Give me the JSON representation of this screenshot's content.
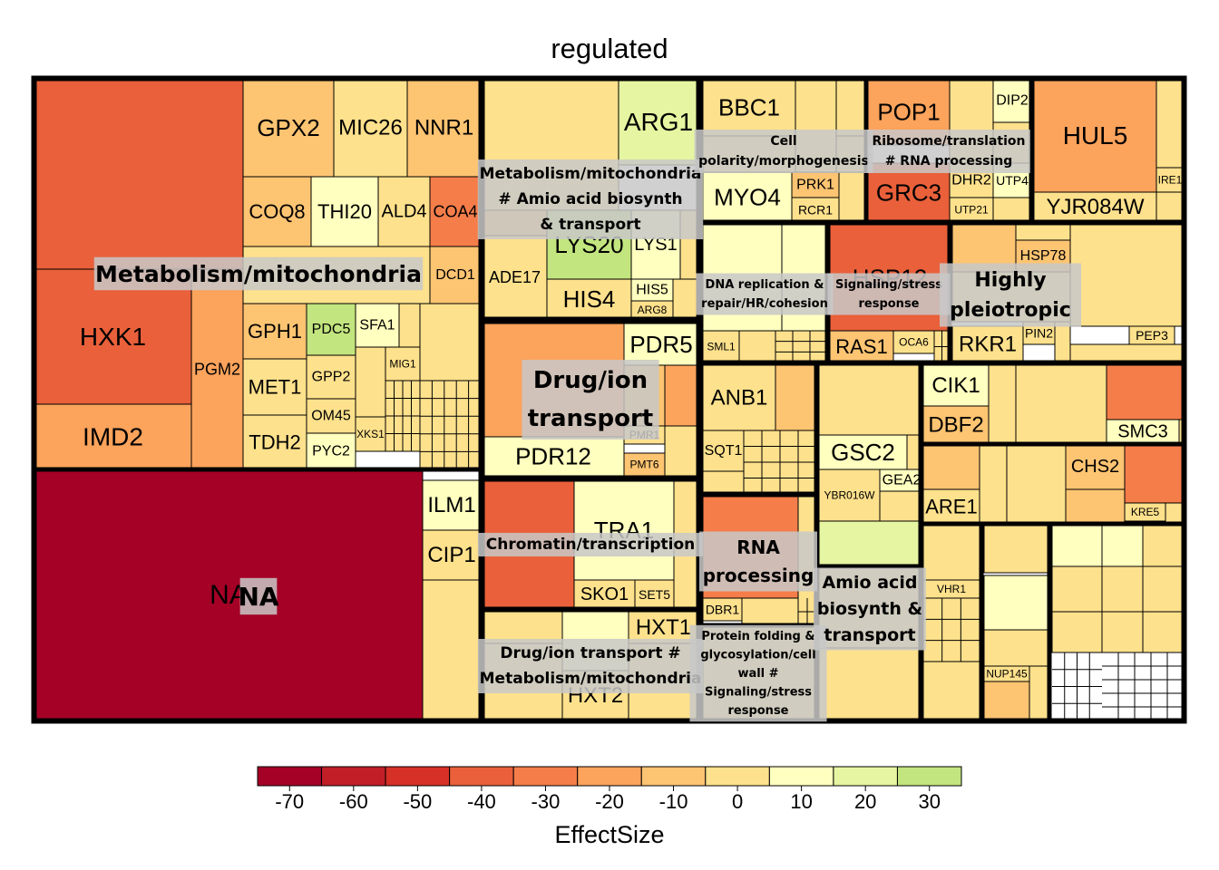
{
  "chart_data": {
    "type": "treemap",
    "title": "regulated",
    "legend": {
      "title": "EffectSize",
      "placement": "bottom",
      "ticks": [
        -70,
        -60,
        -50,
        -40,
        -30,
        -20,
        -10,
        0,
        10,
        20,
        30
      ],
      "range": [
        -75,
        35
      ],
      "bin_colors": [
        "#a50026",
        "#c11e28",
        "#d73027",
        "#e9603a",
        "#f57d4a",
        "#fca35c",
        "#fdc472",
        "#fee18c",
        "#ffffbf",
        "#e6f5a1",
        "#c3e57f",
        "#a0d669"
      ]
    },
    "groups": [
      {
        "name": "Metabolism/mitochondria",
        "label": "Metabolism/mitochondria"
      },
      {
        "name": "NA",
        "label": "NA"
      },
      {
        "name": "Metabolism/mitochondria # Amio acid biosynth & transport",
        "label": "Metabolism/mitochondria # Amio acid biosynth & transport"
      },
      {
        "name": "Drug/ion transport",
        "label": "Drug/ion transport"
      },
      {
        "name": "Chromatin/transcription",
        "label": "Chromatin/transcription"
      },
      {
        "name": "Drug/ion transport # Metabolism/mitochondria",
        "label": "Drug/ion transport # Metabolism/mitochondria"
      },
      {
        "name": "Cell polarity/morphogenesis",
        "label": "Cell polarity/morphogenesis"
      },
      {
        "name": "Ribosome/translation # RNA processing",
        "label": "Ribosome/translation # RNA processing"
      },
      {
        "name": "DNA replication & repair/HR/cohesion",
        "label": "DNA replication & repair/HR/cohesion"
      },
      {
        "name": "Signaling/stress response",
        "label": "Signaling/stress response"
      },
      {
        "name": "Highly pleiotropic",
        "label": "Highly pleiotropic"
      },
      {
        "name": "RNA processing",
        "label": "RNA processing"
      },
      {
        "name": "Protein folding & glycosylation/cell wall # Signaling/stress response",
        "label": "Protein folding & glycosylation/cell wall # Signaling/stress response"
      },
      {
        "name": "Amio acid biosynth & transport",
        "label": "Amio acid biosynth & transport"
      }
    ],
    "genes": [
      {
        "name": "HXK1",
        "group": "Metabolism/mitochondria",
        "value": -38
      },
      {
        "name": "IMD2",
        "group": "Metabolism/mitochondria",
        "value": -18
      },
      {
        "name": "PGM2",
        "group": "Metabolism/mitochondria",
        "value": -25
      },
      {
        "name": "GPX2",
        "group": "Metabolism/mitochondria",
        "value": -12
      },
      {
        "name": "MIC26",
        "group": "Metabolism/mitochondria",
        "value": 3
      },
      {
        "name": "NNR1",
        "group": "Metabolism/mitochondria",
        "value": -8
      },
      {
        "name": "COQ8",
        "group": "Metabolism/mitochondria",
        "value": -15
      },
      {
        "name": "THI20",
        "group": "Metabolism/mitochondria",
        "value": 12
      },
      {
        "name": "ALD4",
        "group": "Metabolism/mitochondria",
        "value": -5
      },
      {
        "name": "COA4",
        "group": "Metabolism/mitochondria",
        "value": -33
      },
      {
        "name": "DCD1",
        "group": "Metabolism/mitochondria",
        "value": -15
      },
      {
        "name": "GPH1",
        "group": "Metabolism/mitochondria",
        "value": -8
      },
      {
        "name": "PDC5",
        "group": "Metabolism/mitochondria",
        "value": 28
      },
      {
        "name": "SFA1",
        "group": "Metabolism/mitochondria",
        "value": 5
      },
      {
        "name": "MIG1",
        "group": "Metabolism/mitochondria",
        "value": 2
      },
      {
        "name": "MET1",
        "group": "Metabolism/mitochondria",
        "value": -3
      },
      {
        "name": "GPP2",
        "group": "Metabolism/mitochondria",
        "value": 1
      },
      {
        "name": "OM45",
        "group": "Metabolism/mitochondria",
        "value": 3
      },
      {
        "name": "XKS1",
        "group": "Metabolism/mitochondria",
        "value": 1
      },
      {
        "name": "TDH2",
        "group": "Metabolism/mitochondria",
        "value": -2
      },
      {
        "name": "PYC2",
        "group": "Metabolism/mitochondria",
        "value": 12
      },
      {
        "name": "NA",
        "group": "NA",
        "value": -72
      },
      {
        "name": "ILM1",
        "group": "NA",
        "value": 5
      },
      {
        "name": "CIP1",
        "group": "NA",
        "value": 0
      },
      {
        "name": "ARG1",
        "group": "Metabolism/mitochondria # Amio acid biosynth & transport",
        "value": 15
      },
      {
        "name": "LYS20",
        "group": "Metabolism/mitochondria # Amio acid biosynth & transport",
        "value": 25
      },
      {
        "name": "LYS1",
        "group": "Metabolism/mitochondria # Amio acid biosynth & transport",
        "value": 6
      },
      {
        "name": "ADE17",
        "group": "Metabolism/mitochondria # Amio acid biosynth & transport",
        "value": -5
      },
      {
        "name": "HIS4",
        "group": "Metabolism/mitochondria # Amio acid biosynth & transport",
        "value": 0
      },
      {
        "name": "HIS5",
        "group": "Metabolism/mitochondria # Amio acid biosynth & transport",
        "value": 5
      },
      {
        "name": "ARG8",
        "group": "Metabolism/mitochondria # Amio acid biosynth & transport",
        "value": 3
      },
      {
        "name": "PDR5",
        "group": "Drug/ion transport",
        "value": 5
      },
      {
        "name": "PDR12",
        "group": "Drug/ion transport",
        "value": 5
      },
      {
        "name": "PMR1",
        "group": "Drug/ion transport",
        "value": 0
      },
      {
        "name": "PMT6",
        "group": "Drug/ion transport",
        "value": -10
      },
      {
        "name": "TRA1",
        "group": "Chromatin/transcription",
        "value": 12
      },
      {
        "name": "SKO1",
        "group": "Chromatin/transcription",
        "value": 0
      },
      {
        "name": "SET5",
        "group": "Chromatin/transcription",
        "value": 0
      },
      {
        "name": "HXT1",
        "group": "Drug/ion transport # Metabolism/mitochondria",
        "value": 0
      },
      {
        "name": "HXT2",
        "group": "Drug/ion transport # Metabolism/mitochondria",
        "value": -3
      },
      {
        "name": "BBC1",
        "group": "Cell polarity/morphogenesis",
        "value": -3
      },
      {
        "name": "MYO4",
        "group": "Cell polarity/morphogenesis",
        "value": 5
      },
      {
        "name": "PRK1",
        "group": "Cell polarity/morphogenesis",
        "value": -15
      },
      {
        "name": "RCR1",
        "group": "Cell polarity/morphogenesis",
        "value": 0
      },
      {
        "name": "POP1",
        "group": "Ribosome/translation # RNA processing",
        "value": -25
      },
      {
        "name": "GRC3",
        "group": "Ribosome/translation # RNA processing",
        "value": -40
      },
      {
        "name": "DIP2",
        "group": "Ribosome/translation # RNA processing",
        "value": 12
      },
      {
        "name": "DHR2",
        "group": "Ribosome/translation # RNA processing",
        "value": 0
      },
      {
        "name": "UTP4",
        "group": "Ribosome/translation # RNA processing",
        "value": 12
      },
      {
        "name": "UTP21",
        "group": "Ribosome/translation # RNA processing",
        "value": 2
      },
      {
        "name": "HUL5",
        "group": "Ribosome/translation # RNA processing",
        "value": -20
      },
      {
        "name": "IRE1",
        "group": "Ribosome/translation # RNA processing",
        "value": 0
      },
      {
        "name": "YJR084W",
        "group": "Ribosome/translation # RNA processing",
        "value": 0
      },
      {
        "name": "SML1",
        "group": "DNA replication & repair/HR/cohesion",
        "value": 0
      },
      {
        "name": "HSP12",
        "group": "Signaling/stress response",
        "value": -38
      },
      {
        "name": "RAS1",
        "group": "Signaling/stress response",
        "value": -8
      },
      {
        "name": "OCA6",
        "group": "Signaling/stress response",
        "value": 0
      },
      {
        "name": "HSP78",
        "group": "Highly pleiotropic",
        "value": -10
      },
      {
        "name": "RKR1",
        "group": "Highly pleiotropic",
        "value": 0
      },
      {
        "name": "PIN2",
        "group": "Highly pleiotropic",
        "value": 0
      },
      {
        "name": "PEP3",
        "group": "Highly pleiotropic",
        "value": 0
      },
      {
        "name": "ANB1",
        "group": "Highly pleiotropic",
        "value": 2
      },
      {
        "name": "SQT1",
        "group": "Highly pleiotropic",
        "value": 0
      },
      {
        "name": "GSC2",
        "group": "Highly pleiotropic",
        "value": 12
      },
      {
        "name": "YBR016W",
        "group": "Highly pleiotropic",
        "value": 0
      },
      {
        "name": "GEA2",
        "group": "Highly pleiotropic",
        "value": 5
      },
      {
        "name": "CIK1",
        "group": "Highly pleiotropic",
        "value": 5
      },
      {
        "name": "DBF2",
        "group": "Highly pleiotropic",
        "value": -15
      },
      {
        "name": "SMC3",
        "group": "Highly pleiotropic",
        "value": 12
      },
      {
        "name": "CHS2",
        "group": "Highly pleiotropic",
        "value": -10
      },
      {
        "name": "ARE1",
        "group": "Highly pleiotropic",
        "value": 2
      },
      {
        "name": "KRE5",
        "group": "Highly pleiotropic",
        "value": 0
      },
      {
        "name": "VHR1",
        "group": "Highly pleiotropic",
        "value": 0
      },
      {
        "name": "NUP145",
        "group": "Highly pleiotropic",
        "value": 0
      },
      {
        "name": "DBR1",
        "group": "RNA processing",
        "value": 0
      }
    ]
  }
}
